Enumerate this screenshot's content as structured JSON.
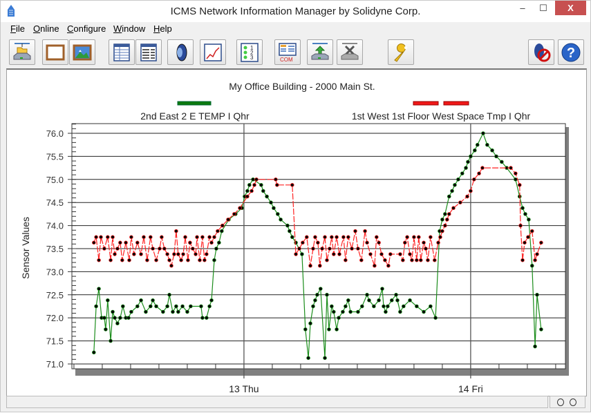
{
  "window": {
    "title": "ICMS Network Information Manager by Solidyne Corp.",
    "minimize_label": "‒",
    "maximize_label": "☐",
    "close_label": "X"
  },
  "menu": [
    {
      "mnemonic": "F",
      "rest": "ile"
    },
    {
      "mnemonic": "O",
      "rest": "nline"
    },
    {
      "mnemonic": "C",
      "rest": "onfigure"
    },
    {
      "mnemonic": "W",
      "rest": "indow"
    },
    {
      "mnemonic": "H",
      "rest": "elp"
    }
  ],
  "toolbar": {
    "icons": [
      "open-network-icon",
      "blank-frame-icon",
      "picture-icon",
      "table-icon",
      "list-table-icon",
      "speaker-icon",
      "line-chart-icon",
      "numbered-list-icon",
      "com-port-icon",
      "upload-network-icon",
      "disconnect-network-icon",
      "wrench-icon",
      "mute-alarm-icon",
      "help-icon"
    ],
    "com_label": "COM",
    "num_labels": [
      "1",
      "2",
      "3"
    ],
    "help_label": "?"
  },
  "status": {
    "left": "",
    "indicators": [
      "○",
      "○"
    ]
  },
  "chart_data": {
    "type": "line",
    "title": "My Office Building - 2000 Main St.",
    "ylabel": "Sensor Values",
    "xlabel": "",
    "x_units": "day of month (decimal)",
    "xlim": [
      12.241,
      14.418
    ],
    "ylim": [
      71.0,
      76.2
    ],
    "yticks": [
      "71.0",
      "71.5",
      "72.0",
      "72.5",
      "73.0",
      "73.5",
      "74.0",
      "74.5",
      "75.0",
      "75.5",
      "76.0"
    ],
    "xticks": [
      {
        "value": 13,
        "label": "13 Thu"
      },
      {
        "value": 14,
        "label": "14 Fri"
      }
    ],
    "grid": true,
    "legend_placement": "top",
    "series": [
      {
        "name": "2nd East 2 E TEMP I Qhr",
        "color": "#1a8c1a",
        "style": "solid",
        "points": [
          [
            12.338,
            71.25
          ],
          [
            12.348,
            72.25
          ],
          [
            12.36,
            72.63
          ],
          [
            12.372,
            72.0
          ],
          [
            12.384,
            72.0
          ],
          [
            12.39,
            71.75
          ],
          [
            12.399,
            72.38
          ],
          [
            12.412,
            71.5
          ],
          [
            12.421,
            72.13
          ],
          [
            12.43,
            72.0
          ],
          [
            12.442,
            71.88
          ],
          [
            12.454,
            72.0
          ],
          [
            12.466,
            72.25
          ],
          [
            12.479,
            72.0
          ],
          [
            12.491,
            72.0
          ],
          [
            12.503,
            72.13
          ],
          [
            12.53,
            72.25
          ],
          [
            12.546,
            72.38
          ],
          [
            12.567,
            72.13
          ],
          [
            12.588,
            72.25
          ],
          [
            12.598,
            72.38
          ],
          [
            12.613,
            72.25
          ],
          [
            12.643,
            72.13
          ],
          [
            12.662,
            72.25
          ],
          [
            12.671,
            72.5
          ],
          [
            12.686,
            72.13
          ],
          [
            12.701,
            72.25
          ],
          [
            12.71,
            72.13
          ],
          [
            12.729,
            72.25
          ],
          [
            12.75,
            72.13
          ],
          [
            12.765,
            72.25
          ],
          [
            12.811,
            72.25
          ],
          [
            12.817,
            72.0
          ],
          [
            12.835,
            72.0
          ],
          [
            12.848,
            72.25
          ],
          [
            12.857,
            72.38
          ],
          [
            12.869,
            73.25
          ],
          [
            12.878,
            73.5
          ],
          [
            12.89,
            73.63
          ],
          [
            12.902,
            73.88
          ],
          [
            12.933,
            74.13
          ],
          [
            12.963,
            74.25
          ],
          [
            12.991,
            74.38
          ],
          [
            13.003,
            74.63
          ],
          [
            13.015,
            74.75
          ],
          [
            13.024,
            74.88
          ],
          [
            13.04,
            75.0
          ],
          [
            13.076,
            74.88
          ],
          [
            13.085,
            74.75
          ],
          [
            13.101,
            74.63
          ],
          [
            13.119,
            74.5
          ],
          [
            13.131,
            74.38
          ],
          [
            13.149,
            74.25
          ],
          [
            13.162,
            74.13
          ],
          [
            13.192,
            74.0
          ],
          [
            13.201,
            73.88
          ],
          [
            13.213,
            73.75
          ],
          [
            13.229,
            73.63
          ],
          [
            13.256,
            73.38
          ],
          [
            13.271,
            71.75
          ],
          [
            13.284,
            71.13
          ],
          [
            13.293,
            71.88
          ],
          [
            13.305,
            72.25
          ],
          [
            13.314,
            72.38
          ],
          [
            13.323,
            72.5
          ],
          [
            13.338,
            72.63
          ],
          [
            13.357,
            71.13
          ],
          [
            13.366,
            72.5
          ],
          [
            13.375,
            71.75
          ],
          [
            13.387,
            72.25
          ],
          [
            13.396,
            72.13
          ],
          [
            13.409,
            71.75
          ],
          [
            13.418,
            72.0
          ],
          [
            13.436,
            72.13
          ],
          [
            13.448,
            72.25
          ],
          [
            13.46,
            72.38
          ],
          [
            13.47,
            72.13
          ],
          [
            13.503,
            72.13
          ],
          [
            13.521,
            72.25
          ],
          [
            13.543,
            72.5
          ],
          [
            13.552,
            72.38
          ],
          [
            13.573,
            72.25
          ],
          [
            13.595,
            72.38
          ],
          [
            13.61,
            72.63
          ],
          [
            13.616,
            72.25
          ],
          [
            13.625,
            72.13
          ],
          [
            13.634,
            72.25
          ],
          [
            13.652,
            72.38
          ],
          [
            13.671,
            72.5
          ],
          [
            13.677,
            72.38
          ],
          [
            13.689,
            72.13
          ],
          [
            13.704,
            72.25
          ],
          [
            13.732,
            72.38
          ],
          [
            13.762,
            72.25
          ],
          [
            13.793,
            72.13
          ],
          [
            13.823,
            72.25
          ],
          [
            13.845,
            72.0
          ],
          [
            13.863,
            73.88
          ],
          [
            13.875,
            74.13
          ],
          [
            13.887,
            74.25
          ],
          [
            13.905,
            74.63
          ],
          [
            13.918,
            74.75
          ],
          [
            13.93,
            74.88
          ],
          [
            13.945,
            75.0
          ],
          [
            13.963,
            75.13
          ],
          [
            13.979,
            75.25
          ],
          [
            13.988,
            75.38
          ],
          [
            14.0,
            75.5
          ],
          [
            14.018,
            75.63
          ],
          [
            14.03,
            75.75
          ],
          [
            14.055,
            76.0
          ],
          [
            14.073,
            75.75
          ],
          [
            14.095,
            75.63
          ],
          [
            14.113,
            75.5
          ],
          [
            14.137,
            75.38
          ],
          [
            14.159,
            75.25
          ],
          [
            14.198,
            75.0
          ],
          [
            14.216,
            74.63
          ],
          [
            14.229,
            74.38
          ],
          [
            14.241,
            74.25
          ],
          [
            14.256,
            74.13
          ],
          [
            14.271,
            73.13
          ],
          [
            14.284,
            71.38
          ],
          [
            14.293,
            72.5
          ],
          [
            14.311,
            71.75
          ]
        ]
      },
      {
        "name": "1st West 1st Floor West Space Tmp I Qhr",
        "color": "#ff2020",
        "style": "dashed",
        "points": [
          [
            12.338,
            73.63
          ],
          [
            12.348,
            73.75
          ],
          [
            12.36,
            73.25
          ],
          [
            12.369,
            73.75
          ],
          [
            12.384,
            73.5
          ],
          [
            12.399,
            73.75
          ],
          [
            12.412,
            73.25
          ],
          [
            12.421,
            73.75
          ],
          [
            12.43,
            73.38
          ],
          [
            12.442,
            73.5
          ],
          [
            12.454,
            73.63
          ],
          [
            12.463,
            73.25
          ],
          [
            12.479,
            73.63
          ],
          [
            12.494,
            73.25
          ],
          [
            12.503,
            73.75
          ],
          [
            12.515,
            73.38
          ],
          [
            12.53,
            73.63
          ],
          [
            12.546,
            73.38
          ],
          [
            12.558,
            73.75
          ],
          [
            12.573,
            73.25
          ],
          [
            12.588,
            73.75
          ],
          [
            12.598,
            73.5
          ],
          [
            12.613,
            73.25
          ],
          [
            12.628,
            73.5
          ],
          [
            12.637,
            73.75
          ],
          [
            12.649,
            73.5
          ],
          [
            12.662,
            73.38
          ],
          [
            12.671,
            73.25
          ],
          [
            12.68,
            73.13
          ],
          [
            12.692,
            73.38
          ],
          [
            12.701,
            73.88
          ],
          [
            12.71,
            73.38
          ],
          [
            12.723,
            73.25
          ],
          [
            12.732,
            73.38
          ],
          [
            12.741,
            73.75
          ],
          [
            12.753,
            73.25
          ],
          [
            12.762,
            73.63
          ],
          [
            12.774,
            73.5
          ],
          [
            12.787,
            73.38
          ],
          [
            12.793,
            73.75
          ],
          [
            12.805,
            73.25
          ],
          [
            12.817,
            73.75
          ],
          [
            12.826,
            73.25
          ],
          [
            12.835,
            73.38
          ],
          [
            12.848,
            73.75
          ],
          [
            12.857,
            73.63
          ],
          [
            12.869,
            73.75
          ],
          [
            12.884,
            73.88
          ],
          [
            12.905,
            74.0
          ],
          [
            12.93,
            74.13
          ],
          [
            12.957,
            74.25
          ],
          [
            12.982,
            74.38
          ],
          [
            13.015,
            74.63
          ],
          [
            13.034,
            74.75
          ],
          [
            13.046,
            74.88
          ],
          [
            13.055,
            75.0
          ],
          [
            13.14,
            75.0
          ],
          [
            13.146,
            74.88
          ],
          [
            13.213,
            74.88
          ],
          [
            13.229,
            73.38
          ],
          [
            13.244,
            73.5
          ],
          [
            13.259,
            73.63
          ],
          [
            13.277,
            73.75
          ],
          [
            13.293,
            73.13
          ],
          [
            13.305,
            73.5
          ],
          [
            13.314,
            73.75
          ],
          [
            13.326,
            73.63
          ],
          [
            13.335,
            73.13
          ],
          [
            13.345,
            73.5
          ],
          [
            13.357,
            73.75
          ],
          [
            13.366,
            73.25
          ],
          [
            13.378,
            73.5
          ],
          [
            13.387,
            73.75
          ],
          [
            13.396,
            73.38
          ],
          [
            13.409,
            73.75
          ],
          [
            13.421,
            73.38
          ],
          [
            13.439,
            73.75
          ],
          [
            13.448,
            73.25
          ],
          [
            13.46,
            73.75
          ],
          [
            13.476,
            73.5
          ],
          [
            13.491,
            73.88
          ],
          [
            13.503,
            73.5
          ],
          [
            13.518,
            73.25
          ],
          [
            13.534,
            73.88
          ],
          [
            13.543,
            73.63
          ],
          [
            13.558,
            73.38
          ],
          [
            13.576,
            73.13
          ],
          [
            13.585,
            73.75
          ],
          [
            13.595,
            73.63
          ],
          [
            13.607,
            73.38
          ],
          [
            13.622,
            73.25
          ],
          [
            13.637,
            73.13
          ],
          [
            13.646,
            73.38
          ],
          [
            13.689,
            73.38
          ],
          [
            13.701,
            73.25
          ],
          [
            13.71,
            73.63
          ],
          [
            13.72,
            73.75
          ],
          [
            13.732,
            73.38
          ],
          [
            13.741,
            73.25
          ],
          [
            13.75,
            73.75
          ],
          [
            13.762,
            73.25
          ],
          [
            13.771,
            73.75
          ],
          [
            13.78,
            73.25
          ],
          [
            13.793,
            73.63
          ],
          [
            13.802,
            73.5
          ],
          [
            13.811,
            73.25
          ],
          [
            13.823,
            73.75
          ],
          [
            13.841,
            73.25
          ],
          [
            13.857,
            73.63
          ],
          [
            13.866,
            73.75
          ],
          [
            13.875,
            73.88
          ],
          [
            13.887,
            74.0
          ],
          [
            13.896,
            74.13
          ],
          [
            13.905,
            74.25
          ],
          [
            13.924,
            74.38
          ],
          [
            13.954,
            74.5
          ],
          [
            13.985,
            74.63
          ],
          [
            14.0,
            74.75
          ],
          [
            14.015,
            75.0
          ],
          [
            14.037,
            75.13
          ],
          [
            14.052,
            75.25
          ],
          [
            14.177,
            75.25
          ],
          [
            14.198,
            75.13
          ],
          [
            14.216,
            74.88
          ],
          [
            14.22,
            74.0
          ],
          [
            14.229,
            73.25
          ],
          [
            14.238,
            73.63
          ],
          [
            14.253,
            73.75
          ],
          [
            14.271,
            73.88
          ],
          [
            14.284,
            73.25
          ],
          [
            14.293,
            73.38
          ],
          [
            14.311,
            73.63
          ]
        ]
      }
    ]
  }
}
